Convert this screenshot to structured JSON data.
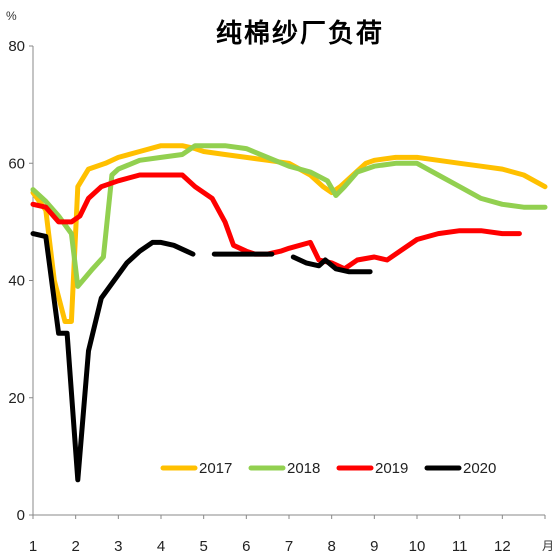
{
  "chart_data": {
    "type": "line",
    "title": "纯棉纱厂负荷",
    "ylabel": "%",
    "xlabel": "月",
    "ylim": [
      0,
      80
    ],
    "y_ticks": [
      0,
      20,
      40,
      60,
      80
    ],
    "xlim": [
      1,
      13
    ],
    "x_ticks": [
      1,
      2,
      3,
      4,
      5,
      6,
      7,
      8,
      9,
      10,
      11,
      12
    ],
    "legend_position": "bottom-right",
    "grid": false,
    "series": [
      {
        "name": "2017",
        "color": "#FFC000",
        "points": [
          [
            1,
            55
          ],
          [
            1.3,
            52
          ],
          [
            1.5,
            40
          ],
          [
            1.75,
            33
          ],
          [
            1.9,
            33
          ],
          [
            2.05,
            56
          ],
          [
            2.3,
            59
          ],
          [
            2.7,
            60
          ],
          [
            3,
            61
          ],
          [
            3.5,
            62
          ],
          [
            4,
            63
          ],
          [
            4.5,
            63
          ],
          [
            4.8,
            62.5
          ],
          [
            5,
            62
          ],
          [
            5.5,
            61.5
          ],
          [
            6,
            61
          ],
          [
            6.5,
            60.5
          ],
          [
            7,
            60
          ],
          [
            7.5,
            58
          ],
          [
            7.8,
            56
          ],
          [
            8,
            55
          ],
          [
            8.2,
            56
          ],
          [
            8.5,
            58
          ],
          [
            8.8,
            60
          ],
          [
            9,
            60.5
          ],
          [
            9.5,
            61
          ],
          [
            10,
            61
          ],
          [
            10.5,
            60.5
          ],
          [
            11,
            60
          ],
          [
            11.5,
            59.5
          ],
          [
            12,
            59
          ],
          [
            12.5,
            58
          ],
          [
            13,
            56
          ]
        ]
      },
      {
        "name": "2018",
        "color": "#92D050",
        "points": [
          [
            1,
            55.5
          ],
          [
            1.3,
            53.5
          ],
          [
            1.6,
            51
          ],
          [
            1.9,
            48
          ],
          [
            2.05,
            39
          ],
          [
            2.4,
            42
          ],
          [
            2.65,
            44
          ],
          [
            2.85,
            58
          ],
          [
            3,
            59
          ],
          [
            3.5,
            60.5
          ],
          [
            4,
            61
          ],
          [
            4.5,
            61.5
          ],
          [
            4.8,
            63
          ],
          [
            5,
            63
          ],
          [
            5.5,
            63
          ],
          [
            6,
            62.5
          ],
          [
            6.5,
            61
          ],
          [
            7,
            59.5
          ],
          [
            7.5,
            58.5
          ],
          [
            7.9,
            57
          ],
          [
            8.1,
            54.5
          ],
          [
            8.3,
            56
          ],
          [
            8.6,
            58.5
          ],
          [
            9,
            59.5
          ],
          [
            9.5,
            60
          ],
          [
            10,
            60
          ],
          [
            10.5,
            58
          ],
          [
            11,
            56
          ],
          [
            11.5,
            54
          ],
          [
            12,
            53
          ],
          [
            12.5,
            52.5
          ],
          [
            13,
            52.5
          ]
        ]
      },
      {
        "name": "2019",
        "color": "#FF0000",
        "points": [
          [
            1,
            53
          ],
          [
            1.3,
            52.5
          ],
          [
            1.6,
            50
          ],
          [
            1.9,
            50
          ],
          [
            2.1,
            51
          ],
          [
            2.3,
            54
          ],
          [
            2.6,
            56
          ],
          [
            3,
            57
          ],
          [
            3.5,
            58
          ],
          [
            4,
            58
          ],
          [
            4.5,
            58
          ],
          [
            4.8,
            56
          ],
          [
            5.2,
            54
          ],
          [
            5.5,
            50
          ],
          [
            5.7,
            46
          ],
          [
            6,
            45
          ],
          [
            6.2,
            44.5
          ],
          [
            6.5,
            44.5
          ],
          [
            6.8,
            45
          ],
          [
            7,
            45.5
          ],
          [
            7.5,
            46.5
          ],
          [
            7.7,
            43.5
          ],
          [
            8,
            43
          ],
          [
            8.3,
            42
          ],
          [
            8.6,
            43.5
          ],
          [
            9,
            44
          ],
          [
            9.3,
            43.5
          ],
          [
            9.6,
            45
          ],
          [
            10,
            47
          ],
          [
            10.5,
            48
          ],
          [
            11,
            48.5
          ],
          [
            11.5,
            48.5
          ],
          [
            12,
            48
          ],
          [
            12.4,
            48
          ]
        ]
      },
      {
        "name": "2020",
        "color": "#000000",
        "segments": [
          [
            [
              1,
              48
            ],
            [
              1.3,
              47.5
            ],
            [
              1.6,
              31
            ],
            [
              1.8,
              31
            ],
            [
              2.05,
              6
            ],
            [
              2.3,
              28
            ],
            [
              2.6,
              37
            ],
            [
              2.9,
              40
            ],
            [
              3.2,
              43
            ],
            [
              3.5,
              45
            ],
            [
              3.8,
              46.5
            ],
            [
              4,
              46.5
            ],
            [
              4.3,
              46
            ],
            [
              4.6,
              45
            ],
            [
              4.75,
              44.5
            ]
          ],
          [
            [
              5.25,
              44.5
            ],
            [
              5.5,
              44.5
            ],
            [
              5.8,
              44.5
            ],
            [
              6.1,
              44.5
            ],
            [
              6.4,
              44.5
            ],
            [
              6.6,
              44.5
            ]
          ],
          [
            [
              7.1,
              44
            ],
            [
              7.4,
              43
            ],
            [
              7.7,
              42.5
            ],
            [
              7.85,
              43.5
            ],
            [
              8.1,
              42
            ],
            [
              8.4,
              41.5
            ],
            [
              8.7,
              41.5
            ],
            [
              8.9,
              41.5
            ]
          ]
        ]
      }
    ]
  }
}
